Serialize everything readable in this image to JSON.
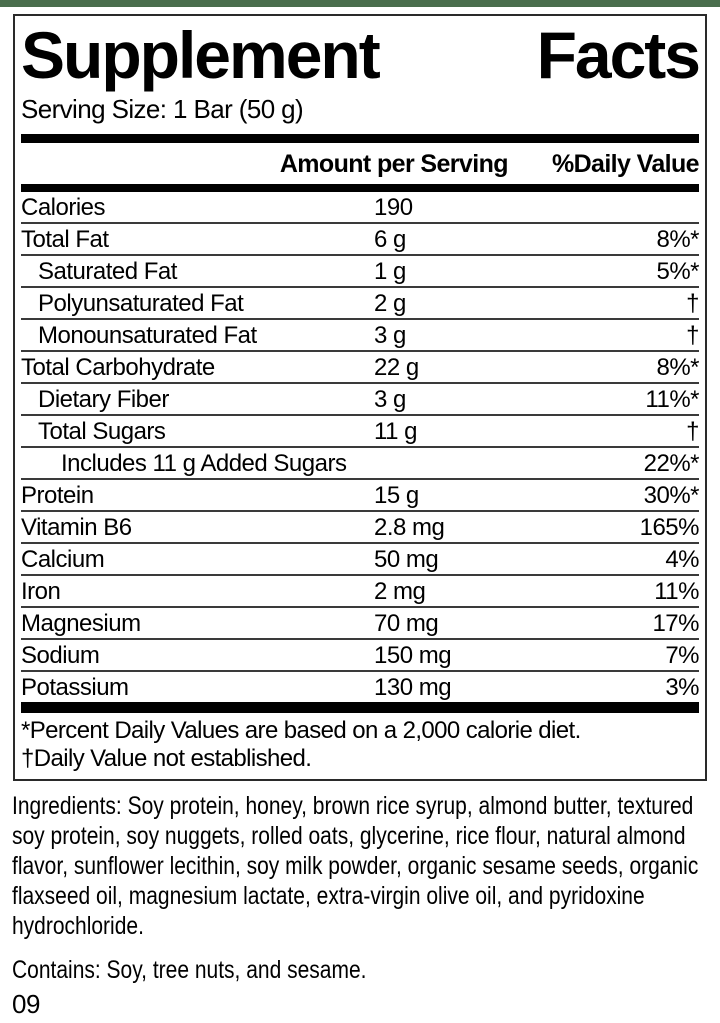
{
  "page": {
    "top_strip_color": "#4a6e4d"
  },
  "label": {
    "title": "Supplement Facts",
    "title_words": [
      "Supplement",
      "Facts"
    ],
    "serving_size": "Serving Size: 1 Bar (50 g)",
    "columns": {
      "amount_header": "Amount per Serving",
      "dv_header": "%Daily Value"
    },
    "rows": [
      {
        "name": "Calories",
        "amount": "190",
        "dv": "",
        "indent": 0
      },
      {
        "name": "Total Fat",
        "amount": "6 g",
        "dv": "8%*",
        "indent": 0
      },
      {
        "name": "Saturated Fat",
        "amount": "1 g",
        "dv": "5%*",
        "indent": 1
      },
      {
        "name": "Polyunsaturated Fat",
        "amount": "2 g",
        "dv": "†",
        "indent": 1
      },
      {
        "name": "Monounsaturated Fat",
        "amount": "3 g",
        "dv": "†",
        "indent": 1
      },
      {
        "name": "Total Carbohydrate",
        "amount": "22 g",
        "dv": "8%*",
        "indent": 0
      },
      {
        "name": "Dietary Fiber",
        "amount": "3 g",
        "dv": "11%*",
        "indent": 1
      },
      {
        "name": "Total Sugars",
        "amount": "11 g",
        "dv": "†",
        "indent": 1
      },
      {
        "name": "Includes 11 g Added Sugars",
        "amount": "",
        "dv": "22%*",
        "indent": 2
      },
      {
        "name": "Protein",
        "amount": "15 g",
        "dv": "30%*",
        "indent": 0
      },
      {
        "name": "Vitamin B6",
        "amount": "2.8 mg",
        "dv": "165%",
        "indent": 0
      },
      {
        "name": "Calcium",
        "amount": "50 mg",
        "dv": "4%",
        "indent": 0
      },
      {
        "name": "Iron",
        "amount": "2 mg",
        "dv": "11%",
        "indent": 0
      },
      {
        "name": "Magnesium",
        "amount": "70 mg",
        "dv": "17%",
        "indent": 0
      },
      {
        "name": "Sodium",
        "amount": "150 mg",
        "dv": "7%",
        "indent": 0
      },
      {
        "name": "Potassium",
        "amount": "130 mg",
        "dv": "3%",
        "indent": 0
      }
    ],
    "footnotes": [
      "*Percent Daily Values are based on a 2,000 calorie diet.",
      "†Daily Value not established."
    ]
  },
  "ingredients": "Ingredients: Soy protein, honey, brown rice syrup, almond butter, textured soy protein, soy nuggets, rolled oats, glycerine, rice flour, natural almond flavor, sunflower lecithin, soy milk powder, organic sesame seeds, organic flaxseed oil, magnesium lactate, extra-virgin olive oil, and pyridoxine hydrochloride.",
  "contains": "Contains: Soy, tree nuts, and sesame.",
  "lot_code": "09"
}
